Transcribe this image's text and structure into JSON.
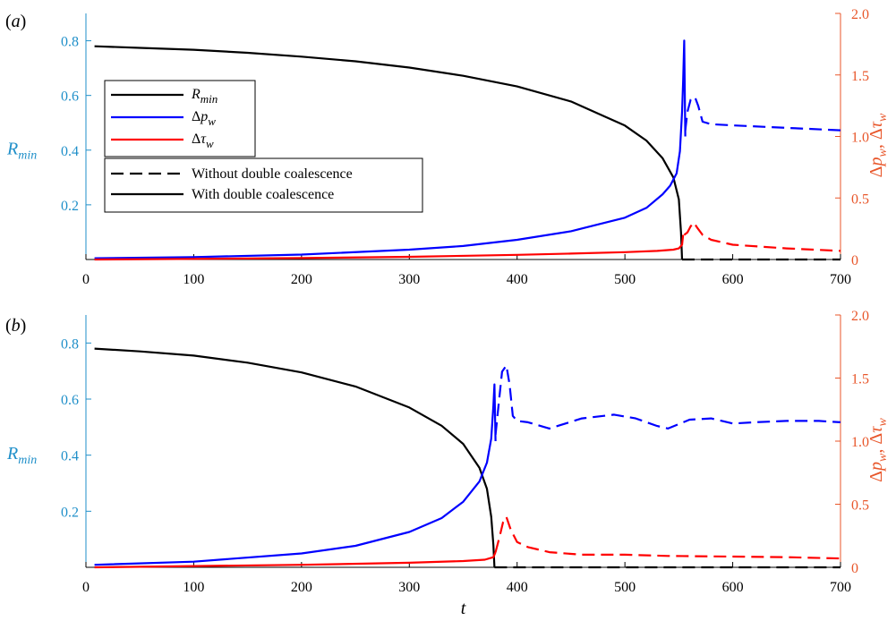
{
  "chart_data": [
    {
      "type": "line",
      "panel_label": "(a)",
      "xlabel": "",
      "ylabel_left": "R_min",
      "ylabel_right": "Δp_w, Δτ_w",
      "xlim": [
        0,
        700
      ],
      "ylim_left": [
        0,
        0.9
      ],
      "ylim_right": [
        0,
        2.0
      ],
      "x_ticks": [
        0,
        100,
        200,
        300,
        400,
        500,
        600,
        700
      ],
      "y_left_ticks": [
        0.2,
        0.4,
        0.6,
        0.8
      ],
      "y_right_ticks": [
        0,
        0.5,
        1.0,
        1.5,
        2.0
      ],
      "y_right_tick_labels": [
        "0",
        "0.5",
        "1.0",
        "1.5",
        "2.0"
      ],
      "legend": {
        "location": "left",
        "line_entries": [
          {
            "label": "R",
            "sub": "min",
            "delta": false,
            "color": "#000000"
          },
          {
            "label": "p",
            "sub": "w",
            "delta": true,
            "color": "#0000ff"
          },
          {
            "label": "τ",
            "sub": "w",
            "delta": true,
            "color": "#ff0000"
          }
        ],
        "style_entries": [
          {
            "label": "Without double coalescence",
            "style": "dashed"
          },
          {
            "label": "With double coalescence",
            "style": "solid"
          }
        ]
      },
      "series": [
        {
          "name": "R_min",
          "axis": "left",
          "color": "#000000",
          "style": "solid",
          "x": [
            8,
            50,
            100,
            150,
            200,
            250,
            300,
            350,
            400,
            450,
            500,
            520,
            535,
            545,
            550,
            552,
            553
          ],
          "y": [
            0.78,
            0.774,
            0.767,
            0.756,
            0.742,
            0.725,
            0.702,
            0.672,
            0.633,
            0.578,
            0.49,
            0.435,
            0.37,
            0.3,
            0.22,
            0.1,
            0.0
          ]
        },
        {
          "name": "R_min",
          "axis": "left",
          "color": "#000000",
          "style": "dashed",
          "x": [
            553,
            700
          ],
          "y": [
            0.0,
            0.0
          ]
        },
        {
          "name": "Δp_w",
          "axis": "right",
          "color": "#0000ff",
          "style": "solid",
          "x": [
            8,
            100,
            200,
            300,
            350,
            400,
            450,
            500,
            520,
            535,
            542,
            548,
            551,
            553,
            554,
            555,
            556
          ],
          "y": [
            0.01,
            0.02,
            0.04,
            0.08,
            0.11,
            0.16,
            0.23,
            0.34,
            0.42,
            0.53,
            0.6,
            0.7,
            0.88,
            1.2,
            1.45,
            1.78,
            1.0
          ]
        },
        {
          "name": "Δp_w",
          "axis": "right",
          "color": "#0000ff",
          "style": "dashed",
          "x": [
            556,
            558,
            561,
            565,
            568,
            572,
            580,
            600,
            650,
            700
          ],
          "y": [
            1.05,
            1.2,
            1.3,
            1.32,
            1.25,
            1.12,
            1.1,
            1.09,
            1.07,
            1.05
          ]
        },
        {
          "name": "Δτ_w",
          "axis": "right",
          "color": "#ff0000",
          "style": "solid",
          "x": [
            8,
            100,
            200,
            300,
            400,
            450,
            500,
            530,
            545,
            550,
            553,
            554
          ],
          "y": [
            0.0,
            0.005,
            0.012,
            0.022,
            0.038,
            0.048,
            0.06,
            0.07,
            0.08,
            0.09,
            0.12,
            0.2
          ]
        },
        {
          "name": "Δτ_w",
          "axis": "right",
          "color": "#ff0000",
          "style": "dashed",
          "x": [
            555,
            558,
            561,
            564,
            567,
            572,
            580,
            600,
            650,
            700
          ],
          "y": [
            0.2,
            0.22,
            0.27,
            0.3,
            0.26,
            0.2,
            0.16,
            0.12,
            0.09,
            0.07
          ]
        }
      ]
    },
    {
      "type": "line",
      "panel_label": "(b)",
      "xlabel": "t",
      "ylabel_left": "R_min",
      "ylabel_right": "Δp_w, Δτ_w",
      "xlim": [
        0,
        700
      ],
      "ylim_left": [
        0,
        0.9
      ],
      "ylim_right": [
        0,
        2.0
      ],
      "x_ticks": [
        0,
        100,
        200,
        300,
        400,
        500,
        600,
        700
      ],
      "y_left_ticks": [
        0.2,
        0.4,
        0.6,
        0.8
      ],
      "y_right_ticks": [
        0,
        0.5,
        1.0,
        1.5,
        2.0
      ],
      "y_right_tick_labels": [
        "0",
        "0.5",
        "1.0",
        "1.5",
        "2.0"
      ],
      "series": [
        {
          "name": "R_min",
          "axis": "left",
          "color": "#000000",
          "style": "solid",
          "x": [
            8,
            50,
            100,
            150,
            200,
            250,
            300,
            330,
            350,
            365,
            372,
            376,
            378,
            379
          ],
          "y": [
            0.78,
            0.77,
            0.755,
            0.73,
            0.695,
            0.645,
            0.57,
            0.505,
            0.44,
            0.355,
            0.28,
            0.18,
            0.08,
            0.0
          ]
        },
        {
          "name": "R_min",
          "axis": "left",
          "color": "#000000",
          "style": "dashed",
          "x": [
            379,
            700
          ],
          "y": [
            0.0,
            0.0
          ]
        },
        {
          "name": "Δp_w",
          "axis": "right",
          "color": "#0000ff",
          "style": "solid",
          "x": [
            8,
            100,
            200,
            250,
            300,
            330,
            350,
            365,
            372,
            376,
            378,
            379,
            380
          ],
          "y": [
            0.02,
            0.045,
            0.11,
            0.17,
            0.28,
            0.39,
            0.52,
            0.68,
            0.83,
            1.02,
            1.28,
            1.45,
            1.0
          ]
        },
        {
          "name": "Δp_w",
          "axis": "right",
          "color": "#0000ff",
          "style": "dashed",
          "x": [
            380,
            383,
            386,
            390,
            393,
            396,
            400,
            410,
            430,
            460,
            490,
            510,
            530,
            540,
            560,
            580,
            600,
            620,
            650,
            680,
            700
          ],
          "y": [
            1.05,
            1.3,
            1.55,
            1.6,
            1.45,
            1.2,
            1.16,
            1.15,
            1.1,
            1.18,
            1.21,
            1.18,
            1.12,
            1.1,
            1.17,
            1.18,
            1.14,
            1.15,
            1.16,
            1.16,
            1.15
          ]
        },
        {
          "name": "Δτ_w",
          "axis": "right",
          "color": "#ff0000",
          "style": "solid",
          "x": [
            8,
            100,
            200,
            300,
            350,
            370,
            378,
            380
          ],
          "y": [
            0.0,
            0.01,
            0.02,
            0.036,
            0.05,
            0.06,
            0.08,
            0.12
          ]
        },
        {
          "name": "Δτ_w",
          "axis": "right",
          "color": "#ff0000",
          "style": "dashed",
          "x": [
            380,
            384,
            387,
            390,
            394,
            400,
            410,
            430,
            460,
            500,
            540,
            600,
            650,
            700
          ],
          "y": [
            0.12,
            0.25,
            0.36,
            0.4,
            0.3,
            0.2,
            0.16,
            0.12,
            0.1,
            0.1,
            0.09,
            0.085,
            0.08,
            0.07
          ]
        }
      ]
    }
  ]
}
